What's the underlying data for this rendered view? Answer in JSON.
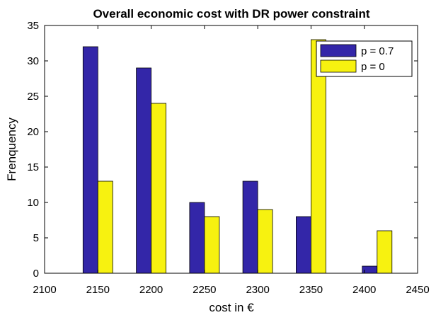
{
  "chart_data": {
    "type": "bar",
    "title": "Overall economic cost with DR power constraint",
    "xlabel": "cost in €",
    "ylabel": "Frenquency",
    "xlim": [
      2100,
      2450
    ],
    "ylim": [
      0,
      35
    ],
    "xticks": [
      "2100",
      "2150",
      "2200",
      "2250",
      "2300",
      "2350",
      "2400",
      "2450"
    ],
    "yticks": [
      "0",
      "5",
      "10",
      "15",
      "20",
      "25",
      "30",
      "35"
    ],
    "bin_centers": [
      2150,
      2200,
      2250,
      2300,
      2350,
      2412
    ],
    "grid": false,
    "legend_position": "top-right",
    "series": [
      {
        "name": "p = 0.7",
        "color": "#3326a8",
        "values": [
          32,
          29,
          10,
          13,
          8,
          1
        ]
      },
      {
        "name": "p = 0",
        "color": "#f7f210",
        "values": [
          13,
          24,
          8,
          9,
          33,
          6
        ]
      }
    ]
  }
}
